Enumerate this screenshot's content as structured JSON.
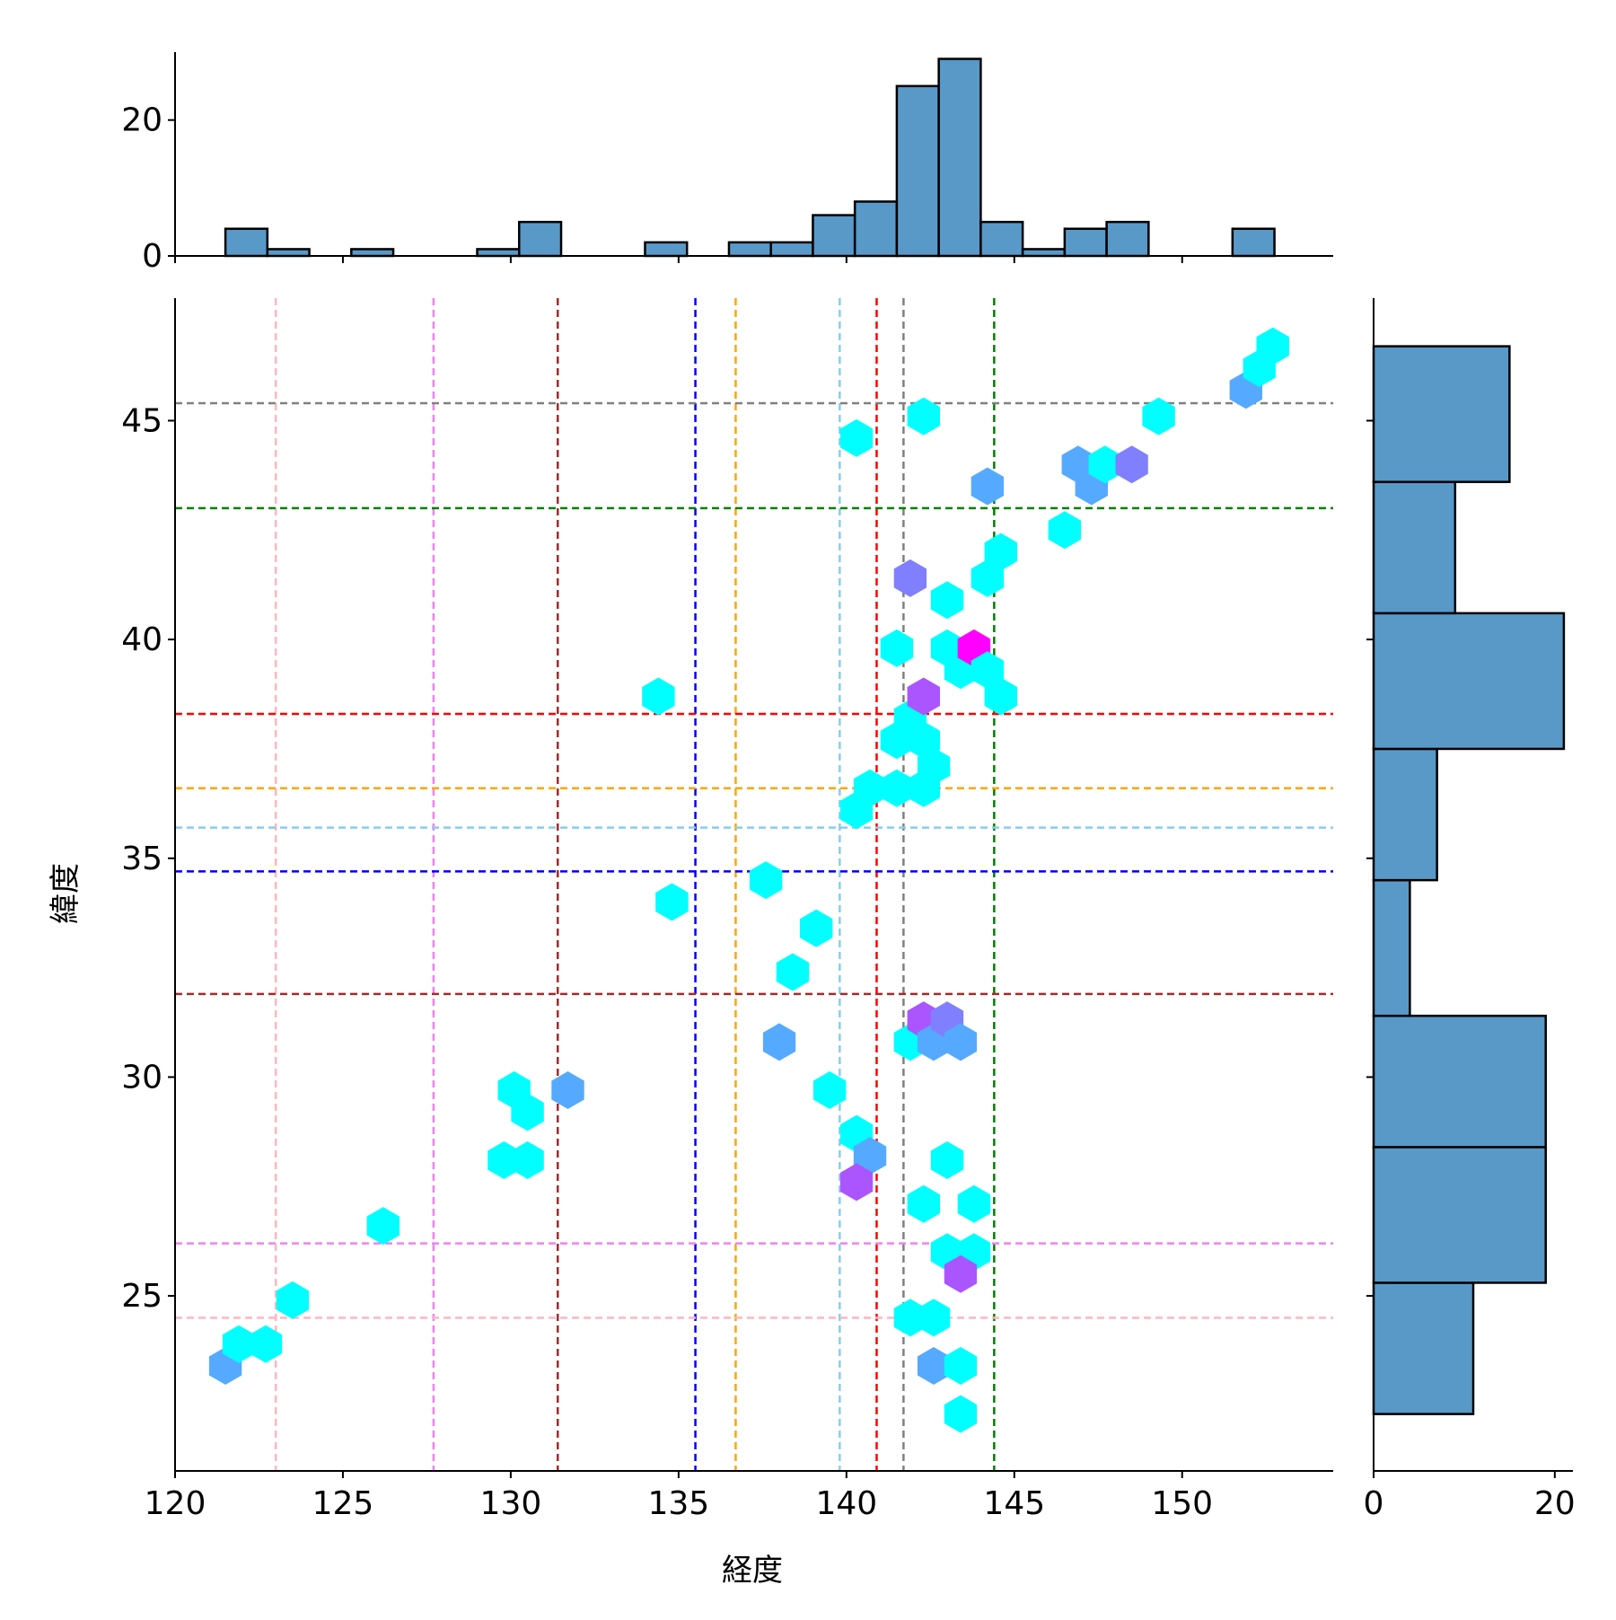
{
  "chart_data": [
    {
      "type": "hexbin",
      "xlabel": "経度",
      "ylabel": "緯度",
      "xlim": [
        120,
        154.5
      ],
      "ylim": [
        21,
        47.8
      ],
      "xticks": [
        "120",
        "125",
        "130",
        "135",
        "140",
        "145",
        "150"
      ],
      "yticks": [
        "25",
        "30",
        "35",
        "40",
        "45"
      ],
      "colormap": {
        "1": "#00ffff",
        "2": "#55aaff",
        "3": "#8080ff",
        "4": "#aa55ff",
        "5": "#ff00ff"
      },
      "hexbins": [
        {
          "x": 121.5,
          "y": 23.4,
          "count": 2
        },
        {
          "x": 121.9,
          "y": 23.9,
          "count": 1
        },
        {
          "x": 122.7,
          "y": 23.9,
          "count": 1
        },
        {
          "x": 123.5,
          "y": 24.9,
          "count": 1
        },
        {
          "x": 126.2,
          "y": 26.6,
          "count": 1
        },
        {
          "x": 129.8,
          "y": 28.1,
          "count": 1
        },
        {
          "x": 130.5,
          "y": 28.1,
          "count": 1
        },
        {
          "x": 130.1,
          "y": 29.7,
          "count": 1
        },
        {
          "x": 130.5,
          "y": 29.2,
          "count": 1
        },
        {
          "x": 131.7,
          "y": 29.7,
          "count": 2
        },
        {
          "x": 134.4,
          "y": 38.7,
          "count": 1
        },
        {
          "x": 134.8,
          "y": 34.0,
          "count": 1
        },
        {
          "x": 137.6,
          "y": 34.5,
          "count": 1
        },
        {
          "x": 138.4,
          "y": 32.4,
          "count": 1
        },
        {
          "x": 139.1,
          "y": 33.4,
          "count": 1
        },
        {
          "x": 138.0,
          "y": 30.8,
          "count": 2
        },
        {
          "x": 139.5,
          "y": 29.7,
          "count": 1
        },
        {
          "x": 140.3,
          "y": 28.7,
          "count": 1
        },
        {
          "x": 140.7,
          "y": 28.2,
          "count": 2
        },
        {
          "x": 140.3,
          "y": 27.6,
          "count": 4
        },
        {
          "x": 140.3,
          "y": 44.6,
          "count": 1
        },
        {
          "x": 140.3,
          "y": 36.1,
          "count": 1
        },
        {
          "x": 140.7,
          "y": 36.6,
          "count": 1
        },
        {
          "x": 141.5,
          "y": 36.6,
          "count": 1
        },
        {
          "x": 141.5,
          "y": 37.7,
          "count": 1
        },
        {
          "x": 141.9,
          "y": 38.2,
          "count": 1
        },
        {
          "x": 142.3,
          "y": 37.7,
          "count": 1
        },
        {
          "x": 142.6,
          "y": 37.1,
          "count": 1
        },
        {
          "x": 142.3,
          "y": 36.6,
          "count": 1
        },
        {
          "x": 141.5,
          "y": 39.8,
          "count": 1
        },
        {
          "x": 141.9,
          "y": 41.4,
          "count": 3
        },
        {
          "x": 142.3,
          "y": 38.7,
          "count": 4
        },
        {
          "x": 143.0,
          "y": 40.9,
          "count": 1
        },
        {
          "x": 143.0,
          "y": 39.8,
          "count": 1
        },
        {
          "x": 143.4,
          "y": 39.3,
          "count": 1
        },
        {
          "x": 143.8,
          "y": 39.8,
          "count": 5
        },
        {
          "x": 144.2,
          "y": 39.3,
          "count": 1
        },
        {
          "x": 144.6,
          "y": 38.7,
          "count": 1
        },
        {
          "x": 144.2,
          "y": 41.4,
          "count": 1
        },
        {
          "x": 144.6,
          "y": 42.0,
          "count": 1
        },
        {
          "x": 144.2,
          "y": 43.5,
          "count": 2
        },
        {
          "x": 142.3,
          "y": 45.1,
          "count": 1
        },
        {
          "x": 146.5,
          "y": 42.5,
          "count": 1
        },
        {
          "x": 146.9,
          "y": 44.0,
          "count": 2
        },
        {
          "x": 147.3,
          "y": 43.5,
          "count": 2
        },
        {
          "x": 147.7,
          "y": 44.0,
          "count": 1
        },
        {
          "x": 148.5,
          "y": 44.0,
          "count": 3
        },
        {
          "x": 149.3,
          "y": 45.1,
          "count": 1
        },
        {
          "x": 151.9,
          "y": 45.7,
          "count": 2
        },
        {
          "x": 152.3,
          "y": 46.2,
          "count": 1
        },
        {
          "x": 152.7,
          "y": 46.7,
          "count": 1
        },
        {
          "x": 141.9,
          "y": 30.8,
          "count": 1
        },
        {
          "x": 142.3,
          "y": 31.3,
          "count": 4
        },
        {
          "x": 142.6,
          "y": 30.8,
          "count": 2
        },
        {
          "x": 143.0,
          "y": 31.3,
          "count": 3
        },
        {
          "x": 143.4,
          "y": 30.8,
          "count": 2
        },
        {
          "x": 143.0,
          "y": 28.1,
          "count": 1
        },
        {
          "x": 142.3,
          "y": 27.1,
          "count": 1
        },
        {
          "x": 143.8,
          "y": 27.1,
          "count": 1
        },
        {
          "x": 143.0,
          "y": 26.0,
          "count": 1
        },
        {
          "x": 143.8,
          "y": 26.0,
          "count": 1
        },
        {
          "x": 143.4,
          "y": 25.5,
          "count": 4
        },
        {
          "x": 141.9,
          "y": 24.5,
          "count": 1
        },
        {
          "x": 142.6,
          "y": 24.5,
          "count": 1
        },
        {
          "x": 142.6,
          "y": 23.4,
          "count": 2
        },
        {
          "x": 143.4,
          "y": 23.4,
          "count": 1
        },
        {
          "x": 143.4,
          "y": 22.3,
          "count": 1
        }
      ],
      "vertical_lines": [
        {
          "x": 123.0,
          "color": "#ffb6c1"
        },
        {
          "x": 127.7,
          "color": "#ee82ee"
        },
        {
          "x": 131.4,
          "color": "#a52a2a"
        },
        {
          "x": 135.5,
          "color": "#0000ff"
        },
        {
          "x": 136.7,
          "color": "#ffa500"
        },
        {
          "x": 139.8,
          "color": "#87ceeb"
        },
        {
          "x": 140.9,
          "color": "#ff0000"
        },
        {
          "x": 141.7,
          "color": "#808080"
        },
        {
          "x": 144.4,
          "color": "#008000"
        }
      ],
      "horizontal_lines": [
        {
          "y": 45.4,
          "color": "#808080"
        },
        {
          "y": 43.0,
          "color": "#008000"
        },
        {
          "y": 38.3,
          "color": "#ff0000"
        },
        {
          "y": 36.6,
          "color": "#ffa500"
        },
        {
          "y": 35.7,
          "color": "#87ceeb"
        },
        {
          "y": 34.7,
          "color": "#0000ff"
        },
        {
          "y": 31.9,
          "color": "#a52a2a"
        },
        {
          "y": 26.2,
          "color": "#ee82ee"
        },
        {
          "y": 24.5,
          "color": "#ffb6c1"
        }
      ]
    },
    {
      "type": "histogram",
      "orientation": "vertical",
      "axis": "x",
      "yticks": [
        "0",
        "20"
      ],
      "ylim": [
        0,
        30
      ],
      "bars": [
        {
          "x0": 121.5,
          "x1": 122.75,
          "count": 4
        },
        {
          "x0": 122.75,
          "x1": 124.0,
          "count": 1
        },
        {
          "x0": 124.0,
          "x1": 125.25,
          "count": 0
        },
        {
          "x0": 125.25,
          "x1": 126.5,
          "count": 1
        },
        {
          "x0": 126.5,
          "x1": 127.75,
          "count": 0
        },
        {
          "x0": 127.75,
          "x1": 129.0,
          "count": 0
        },
        {
          "x0": 129.0,
          "x1": 130.25,
          "count": 1
        },
        {
          "x0": 130.25,
          "x1": 131.5,
          "count": 5
        },
        {
          "x0": 131.5,
          "x1": 132.75,
          "count": 0
        },
        {
          "x0": 132.75,
          "x1": 134.0,
          "count": 0
        },
        {
          "x0": 134.0,
          "x1": 135.25,
          "count": 2
        },
        {
          "x0": 135.25,
          "x1": 136.5,
          "count": 0
        },
        {
          "x0": 136.5,
          "x1": 137.75,
          "count": 2
        },
        {
          "x0": 137.75,
          "x1": 139.0,
          "count": 2
        },
        {
          "x0": 139.0,
          "x1": 140.25,
          "count": 6
        },
        {
          "x0": 140.25,
          "x1": 141.5,
          "count": 8
        },
        {
          "x0": 141.5,
          "x1": 142.75,
          "count": 25
        },
        {
          "x0": 142.75,
          "x1": 144.0,
          "count": 29
        },
        {
          "x0": 144.0,
          "x1": 145.25,
          "count": 5
        },
        {
          "x0": 145.25,
          "x1": 146.5,
          "count": 1
        },
        {
          "x0": 146.5,
          "x1": 147.75,
          "count": 4
        },
        {
          "x0": 147.75,
          "x1": 149.0,
          "count": 5
        },
        {
          "x0": 149.0,
          "x1": 150.25,
          "count": 0
        },
        {
          "x0": 150.25,
          "x1": 151.5,
          "count": 0
        },
        {
          "x0": 151.5,
          "x1": 152.75,
          "count": 4
        }
      ],
      "fill": "#5899c8",
      "edge": "#000000"
    },
    {
      "type": "histogram",
      "orientation": "horizontal",
      "axis": "y",
      "xticks": [
        "0",
        "20"
      ],
      "xlim": [
        0,
        22
      ],
      "bars": [
        {
          "y0": 22.3,
          "y1": 25.3,
          "count": 11
        },
        {
          "y0": 25.3,
          "y1": 28.4,
          "count": 19
        },
        {
          "y0": 28.4,
          "y1": 31.4,
          "count": 19
        },
        {
          "y0": 31.4,
          "y1": 34.5,
          "count": 4
        },
        {
          "y0": 34.5,
          "y1": 37.5,
          "count": 7
        },
        {
          "y0": 37.5,
          "y1": 40.6,
          "count": 21
        },
        {
          "y0": 40.6,
          "y1": 43.6,
          "count": 9
        },
        {
          "y0": 43.6,
          "y1": 46.7,
          "count": 15
        }
      ],
      "fill": "#5899c8",
      "edge": "#000000"
    }
  ]
}
